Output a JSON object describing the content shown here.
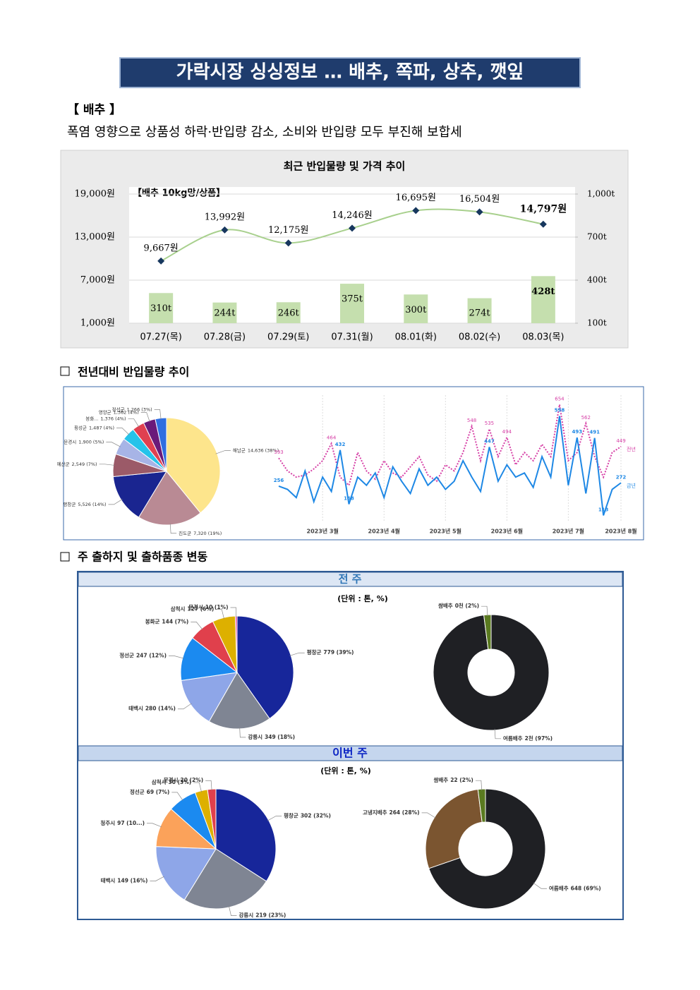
{
  "title": "가락시장 싱싱정보 … 배추, 쪽파, 상추, 깻잎",
  "section_label": "【 배추 】",
  "headline": "폭염 영향으로 상품성 하락·반입량 감소, 소비와 반입량 모두 부진해 보합세",
  "sections": [
    "전년대비 반입물량 추이",
    "주 출하지 및 출하품종 변동"
  ],
  "chart_data": [
    {
      "type": "combo",
      "title": "최근 반입물량 및 가격 추이",
      "annotation": "【배추 10kg망/상품】",
      "categories": [
        "07.27(목)",
        "07.28(금)",
        "07.29(토)",
        "07.31(월)",
        "08.01(화)",
        "08.02(수)",
        "08.03(목)"
      ],
      "ylim": [
        1000,
        19000
      ],
      "yticks": [
        {
          "value": 1000,
          "label": "1,000원"
        },
        {
          "value": 7000,
          "label": "7,000원"
        },
        {
          "value": 13000,
          "label": "13,000원"
        },
        {
          "value": 19000,
          "label": "19,000원"
        }
      ],
      "y2lim": [
        100,
        1000
      ],
      "y2ticks": [
        {
          "value": 100,
          "label": "100t"
        },
        {
          "value": 400,
          "label": "400t"
        },
        {
          "value": 700,
          "label": "700t"
        },
        {
          "value": 1000,
          "label": "1,000t"
        }
      ],
      "grid": true,
      "series": [
        {
          "type": "bar",
          "axis": "y2",
          "color": "#c5dfae",
          "values": [
            310,
            244,
            246,
            375,
            300,
            274,
            428
          ],
          "value_labels": [
            "310t",
            "244t",
            "246t",
            "375t",
            "300t",
            "274t",
            "428t"
          ]
        },
        {
          "type": "line",
          "color": "#a8d08d",
          "marker_color": "#17375e",
          "values": [
            9667,
            13992,
            12175,
            14246,
            16695,
            16504,
            14797
          ],
          "value_labels": [
            "9,667원",
            "13,992원",
            "12,175원",
            "14,246원",
            "16,695원",
            "16,504원",
            "14,797원"
          ]
        }
      ]
    },
    {
      "type": "pie",
      "categories": [
        "해남군",
        "진도군",
        "평창군",
        "예산군",
        "문경시",
        "횡성군",
        "봉화...",
        "영양군",
        "정선군"
      ],
      "values": [
        14636,
        7320,
        5526,
        2549,
        1900,
        1487,
        1376,
        1362,
        1266
      ],
      "value_labels": [
        "14,636 (38%)",
        "7,320 (19%)",
        "5,526 (14%)",
        "2,549 (7%)",
        "1,900 (5%)",
        "1,487 (4%)",
        "1,376 (4%)",
        "1,362 (4%)",
        "1,266 (3%)"
      ],
      "colors": [
        "#fde58c",
        "#b98a94",
        "#1a2590",
        "#9b5a68",
        "#a7b4e6",
        "#25c3ea",
        "#e04050",
        "#6a1a7a",
        "#2f6ee0"
      ]
    },
    {
      "type": "line",
      "categories": [
        null,
        null,
        null,
        null,
        null,
        "2023년 3월",
        null,
        null,
        null,
        null,
        null,
        null,
        "2023년 4월",
        null,
        null,
        null,
        null,
        null,
        null,
        "2023년 5월",
        null,
        null,
        null,
        null,
        null,
        null,
        "2023년 6월",
        null,
        null,
        null,
        null,
        null,
        null,
        "2023년 7월",
        null,
        null,
        null,
        null,
        null,
        "2023년 8월"
      ],
      "ylim": [
        80,
        700
      ],
      "series": [
        {
          "name": "전년",
          "color": "#d63fa6",
          "dash": true,
          "values": [
            393,
            330,
            300,
            310,
            340,
            380,
            464,
            300,
            260,
            420,
            330,
            290,
            380,
            320,
            300,
            350,
            400,
            310,
            280,
            360,
            330,
            420,
            548,
            380,
            535,
            400,
            494,
            360,
            420,
            380,
            460,
            400,
            654,
            380,
            420,
            562,
            400,
            300,
            420,
            449
          ],
          "value_labels": [
            "393",
            null,
            null,
            null,
            null,
            null,
            "464",
            null,
            null,
            null,
            null,
            null,
            null,
            null,
            null,
            null,
            null,
            null,
            null,
            null,
            null,
            null,
            "548",
            null,
            "535",
            null,
            "494",
            null,
            null,
            null,
            null,
            null,
            "654",
            null,
            null,
            "562",
            null,
            null,
            null,
            "449"
          ]
        },
        {
          "name": "금년",
          "color": "#1e88e5",
          "dash": false,
          "values": [
            256,
            240,
            200,
            330,
            180,
            300,
            230,
            432,
            168,
            300,
            260,
            320,
            200,
            350,
            280,
            220,
            340,
            260,
            300,
            240,
            280,
            380,
            300,
            230,
            447,
            280,
            360,
            300,
            320,
            250,
            400,
            300,
            598,
            260,
            493,
            220,
            491,
            113,
            240,
            272
          ],
          "value_labels": [
            "256",
            null,
            null,
            null,
            null,
            null,
            null,
            "432",
            "168",
            null,
            null,
            null,
            null,
            null,
            null,
            null,
            null,
            null,
            null,
            null,
            null,
            null,
            null,
            null,
            "447",
            null,
            null,
            null,
            null,
            null,
            null,
            null,
            "598",
            null,
            "493",
            null,
            "491",
            "113",
            null,
            "272"
          ]
        }
      ]
    },
    {
      "type": "pie",
      "title": "전 주",
      "subtitle": "(단위 : 톤, %)",
      "categories": [
        "평창군",
        "강릉시",
        "태백시",
        "정선군",
        "봉화군",
        "삼척시",
        "문경시"
      ],
      "values": [
        779,
        349,
        280,
        247,
        144,
        127,
        10
      ],
      "value_labels": [
        "779 (39%)",
        "349 (18%)",
        "280 (14%)",
        "247 (12%)",
        "144 (7%)",
        "127 (6%)",
        "10 (1%)"
      ],
      "colors": [
        "#17269a",
        "#7f8593",
        "#8ea6e8",
        "#1b8af0",
        "#e0404c",
        "#ddb000",
        "#e040a0"
      ]
    },
    {
      "type": "donut",
      "categories": [
        "여름배추",
        "쌈배추"
      ],
      "values": [
        97,
        2
      ],
      "value_labels": [
        "2천 (97%)",
        "0천 (2%)"
      ],
      "colors": [
        "#1f2024",
        "#5a7a20"
      ]
    },
    {
      "type": "pie",
      "title": "이번 주",
      "subtitle": "(단위 : 톤, %)",
      "categories": [
        "평창군",
        "강릉시",
        "태백시",
        "청주시",
        "정선군",
        "삼척시",
        "문경시"
      ],
      "values": [
        302,
        219,
        149,
        97,
        69,
        30,
        20
      ],
      "value_labels": [
        "302 (32%)",
        "219 (23%)",
        "149 (16%)",
        "97 (10...)",
        "69 (7%)",
        "30 (3%)",
        "20 (2%)"
      ],
      "colors": [
        "#17269a",
        "#7f8593",
        "#8ea6e8",
        "#fba25a",
        "#1b8af0",
        "#ddb000",
        "#e0404c"
      ]
    },
    {
      "type": "donut",
      "categories": [
        "여름배추",
        "고냉지배추",
        "쌈배추"
      ],
      "values": [
        69,
        28,
        2
      ],
      "value_labels": [
        "648 (69%)",
        "264 (28%)",
        "22 (2%)"
      ],
      "colors": [
        "#1f2024",
        "#7b5530",
        "#5a7a20"
      ]
    }
  ]
}
